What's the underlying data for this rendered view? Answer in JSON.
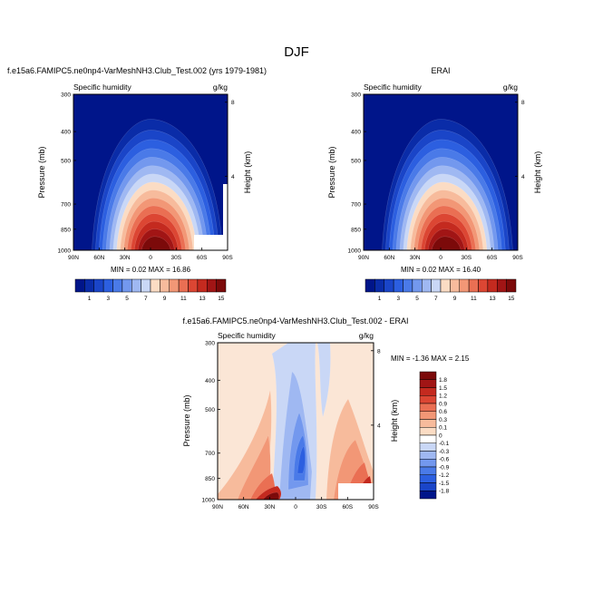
{
  "figure": {
    "title": "DJF",
    "x_ticks": [
      "90N",
      "60N",
      "30N",
      "0",
      "30S",
      "60S",
      "90S"
    ],
    "p_ticks": [
      300,
      400,
      500,
      700,
      850,
      1000
    ],
    "h_ticks": [
      8,
      4
    ],
    "ylabel": "Pressure (mb)",
    "ylabel2": "Height (km)"
  },
  "chart_data": [
    {
      "type": "heatmap",
      "panel": "model",
      "title": "f.e15a6.FAMIPC5.ne0np4-VarMeshNH3.Club_Test.002 (yrs 1979-1981)",
      "left_label": "Specific humidity",
      "right_label": "g/kg",
      "xlabel": "",
      "ylabel": "Pressure (mb)",
      "ylabel2": "Height (km)",
      "xlim": [
        90,
        -90
      ],
      "ylim": [
        1000,
        300
      ],
      "stats_text": "MIN =  0.02  MAX =  16.86",
      "min": 0.02,
      "max": 16.86
    },
    {
      "type": "heatmap",
      "panel": "obs",
      "title": "ERAI",
      "left_label": "Specific humidity",
      "right_label": "g/kg",
      "xlabel": "",
      "ylabel": "Pressure (mb)",
      "ylabel2": "Height (km)",
      "xlim": [
        90,
        -90
      ],
      "ylim": [
        1000,
        300
      ],
      "stats_text": "MIN =  0.02  MAX =  16.40",
      "min": 0.02,
      "max": 16.4
    },
    {
      "type": "heatmap",
      "panel": "diff",
      "title": "f.e15a6.FAMIPC5.ne0np4-VarMeshNH3.Club_Test.002 - ERAI",
      "left_label": "Specific humidity",
      "right_label": "g/kg",
      "xlabel": "",
      "ylabel": "Pressure (mb)",
      "ylabel2": "Height (km)",
      "xlim": [
        90,
        -90
      ],
      "ylim": [
        1000,
        300
      ],
      "stats_text": "MIN = -1.36  MAX =  2.15",
      "min": -1.36,
      "max": 2.15
    }
  ],
  "colorbar_abs": {
    "labels": [
      "1",
      "3",
      "5",
      "7",
      "9",
      "11",
      "13",
      "15"
    ],
    "colors": [
      "#00158a",
      "#0a2ca8",
      "#1a45c8",
      "#2c5fe0",
      "#4a7ae8",
      "#7398ee",
      "#9fb8f2",
      "#c9d7f6",
      "#fbdcc4",
      "#f7bb9c",
      "#f29776",
      "#ea6f53",
      "#dc4633",
      "#c42a1f",
      "#a11515",
      "#7c0a0a"
    ]
  },
  "colorbar_diff": {
    "labels": [
      "1.8",
      "1.5",
      "1.2",
      "0.9",
      "0.6",
      "0.3",
      "0.1",
      "0",
      "-0.1",
      "-0.3",
      "-0.6",
      "-0.9",
      "-1.2",
      "-1.5",
      "-1.8"
    ],
    "colors": [
      "#7c0a0a",
      "#a11515",
      "#c42a1f",
      "#dc4633",
      "#ea6f53",
      "#f29776",
      "#f7bb9c",
      "#fbdcc4",
      "#ffffff",
      "#c9d7f6",
      "#9fb8f2",
      "#7398ee",
      "#4a7ae8",
      "#2c5fe0",
      "#1a45c8",
      "#00158a"
    ]
  }
}
